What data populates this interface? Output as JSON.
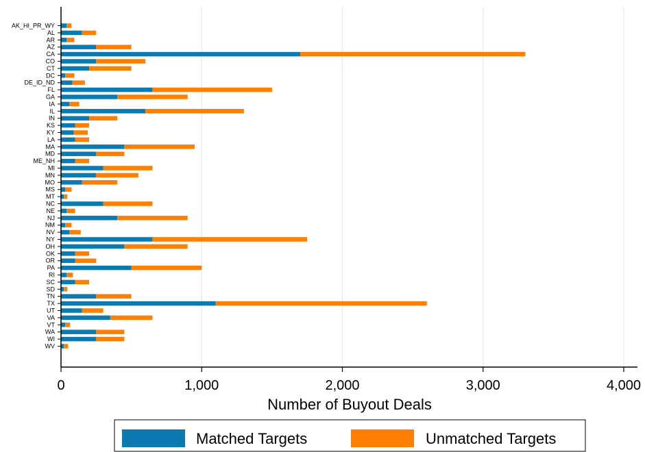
{
  "chart_data": {
    "type": "bar",
    "orientation": "horizontal",
    "stacked": true,
    "categories": [
      "AK_HI_PR_WY",
      "AL",
      "AR",
      "AZ",
      "CA",
      "CO",
      "CT",
      "DC",
      "DE_ID_ND",
      "FL",
      "GA",
      "IA",
      "IL",
      "IN",
      "KS",
      "KY",
      "LA",
      "MA",
      "MD",
      "ME_NH",
      "MI",
      "MN",
      "MO",
      "MS",
      "MT",
      "NC",
      "NE",
      "NJ",
      "NM",
      "NV",
      "NY",
      "OH",
      "OK",
      "OR",
      "PA",
      "RI",
      "SC",
      "SD",
      "TN",
      "TX",
      "UT",
      "VA",
      "VT",
      "WA",
      "WI",
      "WV"
    ],
    "series": [
      {
        "name": "Matched Targets",
        "color": "#0a7ab0",
        "values": [
          40,
          150,
          40,
          250,
          1700,
          250,
          200,
          30,
          80,
          650,
          400,
          60,
          600,
          200,
          100,
          90,
          100,
          450,
          250,
          100,
          300,
          250,
          150,
          30,
          20,
          300,
          40,
          400,
          30,
          60,
          650,
          450,
          100,
          100,
          500,
          40,
          100,
          20,
          250,
          1100,
          150,
          350,
          30,
          250,
          250,
          20
        ]
      },
      {
        "name": "Unmatched Targets",
        "color": "#ff8000",
        "values": [
          35,
          100,
          55,
          250,
          1600,
          350,
          300,
          65,
          90,
          850,
          500,
          70,
          700,
          200,
          100,
          100,
          100,
          500,
          200,
          100,
          350,
          300,
          250,
          45,
          25,
          350,
          60,
          500,
          45,
          80,
          1100,
          450,
          100,
          150,
          500,
          45,
          100,
          25,
          250,
          1500,
          150,
          300,
          35,
          200,
          200,
          30
        ]
      }
    ],
    "xlabel": "Number of Buyout Deals",
    "ylabel": "",
    "xlim": [
      0,
      4000
    ],
    "xticks": [
      0,
      1000,
      2000,
      3000,
      4000
    ],
    "xtick_labels": [
      "0",
      "1,000",
      "2,000",
      "3,000",
      "4,000"
    ],
    "grid": "vertical",
    "legend_position": "bottom"
  }
}
